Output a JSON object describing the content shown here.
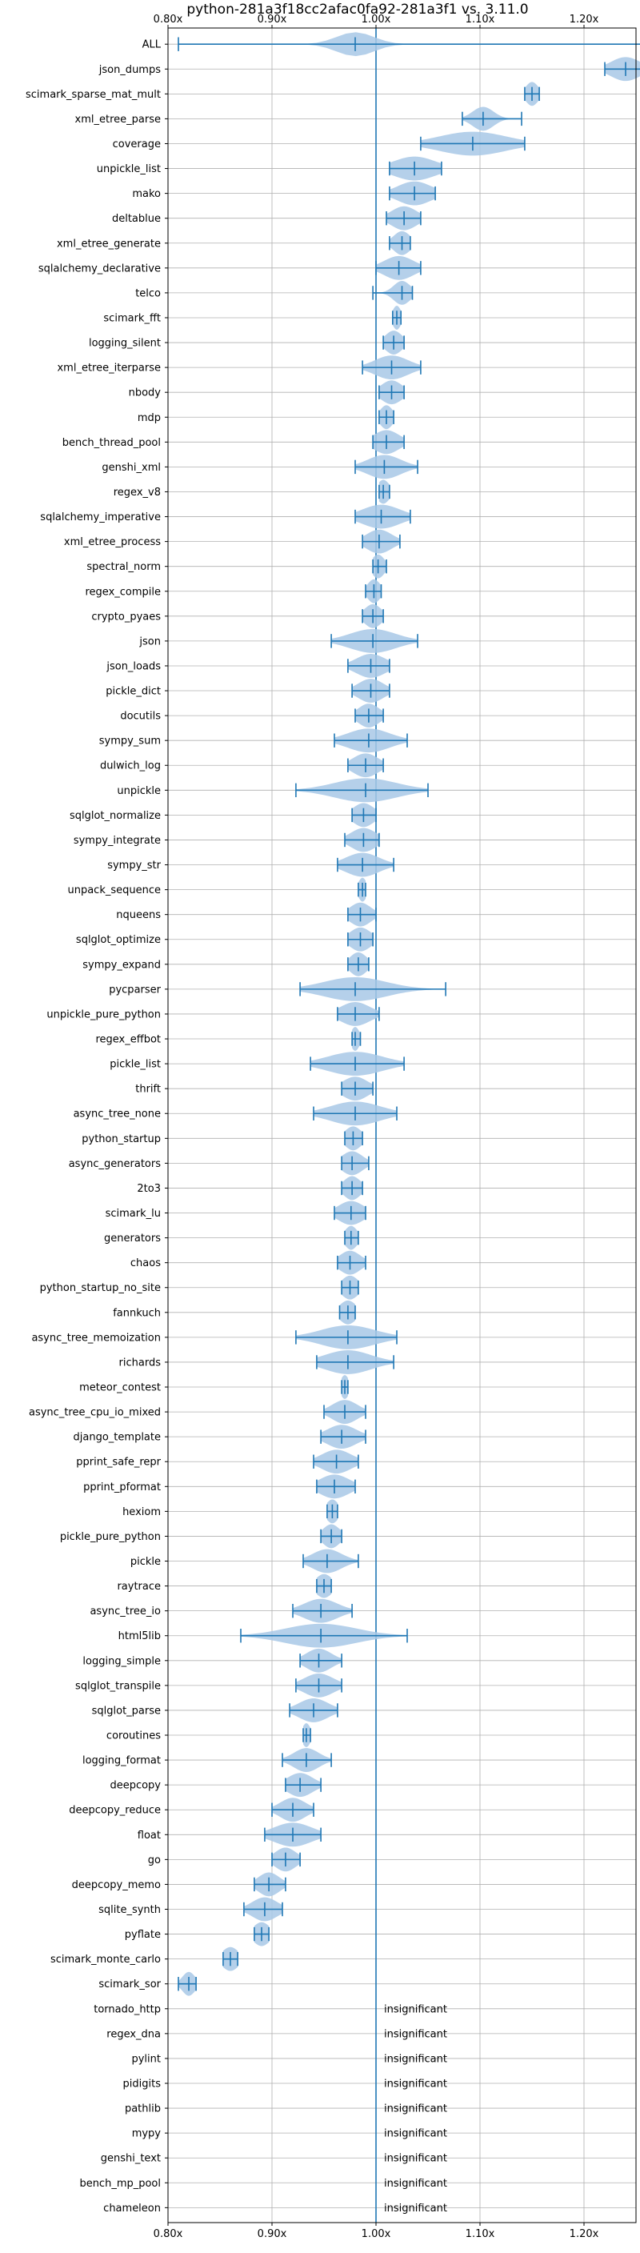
{
  "chart_data": {
    "type": "violin",
    "title": "python-281a3f18cc2afac0fa92-281a3f1 vs. 3.11.0",
    "xlabel": "",
    "ylabel": "",
    "xlim": [
      0.8,
      1.25
    ],
    "x_ticks": [
      0.8,
      0.9,
      1.0,
      1.1,
      1.2
    ],
    "x_tick_labels": [
      "0.80x",
      "0.90x",
      "1.00x",
      "1.10x",
      "1.20x"
    ],
    "reference_line": 1.0,
    "grid": true,
    "colors": {
      "violin": "#a8c8e6",
      "marker": "#1f77b4",
      "grid": "#b0b0b0",
      "reference": "#1f77b4"
    },
    "insignificant_label": "insignificant",
    "series": [
      {
        "name": "ALL",
        "min": 0.81,
        "median": 0.98,
        "max": 1.265,
        "spread": 0.018
      },
      {
        "name": "json_dumps",
        "min": 1.22,
        "median": 1.24,
        "max": 1.262,
        "spread": 0.014
      },
      {
        "name": "scimark_sparse_mat_mult",
        "min": 1.143,
        "median": 1.15,
        "max": 1.157,
        "spread": 0.006
      },
      {
        "name": "xml_etree_parse",
        "min": 1.083,
        "median": 1.103,
        "max": 1.14,
        "spread": 0.01
      },
      {
        "name": "coverage",
        "min": 1.043,
        "median": 1.093,
        "max": 1.143,
        "spread": 0.032
      },
      {
        "name": "unpickle_list",
        "min": 1.013,
        "median": 1.037,
        "max": 1.063,
        "spread": 0.02
      },
      {
        "name": "mako",
        "min": 1.013,
        "median": 1.037,
        "max": 1.057,
        "spread": 0.016
      },
      {
        "name": "deltablue",
        "min": 1.01,
        "median": 1.027,
        "max": 1.043,
        "spread": 0.012
      },
      {
        "name": "xml_etree_generate",
        "min": 1.013,
        "median": 1.025,
        "max": 1.033,
        "spread": 0.008
      },
      {
        "name": "sqlalchemy_declarative",
        "min": 1.0,
        "median": 1.022,
        "max": 1.043,
        "spread": 0.014
      },
      {
        "name": "telco",
        "min": 0.997,
        "median": 1.025,
        "max": 1.035,
        "spread": 0.008
      },
      {
        "name": "scimark_fft",
        "min": 1.016,
        "median": 1.02,
        "max": 1.024,
        "spread": 0.004
      },
      {
        "name": "logging_silent",
        "min": 1.007,
        "median": 1.017,
        "max": 1.027,
        "spread": 0.008
      },
      {
        "name": "xml_etree_iterparse",
        "min": 0.987,
        "median": 1.015,
        "max": 1.043,
        "spread": 0.016
      },
      {
        "name": "nbody",
        "min": 1.003,
        "median": 1.015,
        "max": 1.027,
        "spread": 0.01
      },
      {
        "name": "mdp",
        "min": 1.003,
        "median": 1.01,
        "max": 1.017,
        "spread": 0.006
      },
      {
        "name": "bench_thread_pool",
        "min": 0.997,
        "median": 1.01,
        "max": 1.027,
        "spread": 0.012
      },
      {
        "name": "genshi_xml",
        "min": 0.98,
        "median": 1.008,
        "max": 1.04,
        "spread": 0.016
      },
      {
        "name": "regex_v8",
        "min": 1.003,
        "median": 1.007,
        "max": 1.013,
        "spread": 0.006
      },
      {
        "name": "sqlalchemy_imperative",
        "min": 0.98,
        "median": 1.005,
        "max": 1.033,
        "spread": 0.018
      },
      {
        "name": "xml_etree_process",
        "min": 0.987,
        "median": 1.003,
        "max": 1.023,
        "spread": 0.012
      },
      {
        "name": "spectral_norm",
        "min": 0.997,
        "median": 1.002,
        "max": 1.01,
        "spread": 0.006
      },
      {
        "name": "regex_compile",
        "min": 0.99,
        "median": 0.998,
        "max": 1.005,
        "spread": 0.006
      },
      {
        "name": "crypto_pyaes",
        "min": 0.987,
        "median": 0.997,
        "max": 1.007,
        "spread": 0.008
      },
      {
        "name": "json",
        "min": 0.957,
        "median": 0.997,
        "max": 1.04,
        "spread": 0.022
      },
      {
        "name": "json_loads",
        "min": 0.973,
        "median": 0.995,
        "max": 1.013,
        "spread": 0.014
      },
      {
        "name": "pickle_dict",
        "min": 0.977,
        "median": 0.995,
        "max": 1.013,
        "spread": 0.012
      },
      {
        "name": "docutils",
        "min": 0.98,
        "median": 0.993,
        "max": 1.007,
        "spread": 0.01
      },
      {
        "name": "sympy_sum",
        "min": 0.96,
        "median": 0.993,
        "max": 1.03,
        "spread": 0.02
      },
      {
        "name": "dulwich_log",
        "min": 0.973,
        "median": 0.99,
        "max": 1.007,
        "spread": 0.012
      },
      {
        "name": "unpickle",
        "min": 0.923,
        "median": 0.99,
        "max": 1.05,
        "spread": 0.03
      },
      {
        "name": "sqlglot_normalize",
        "min": 0.977,
        "median": 0.988,
        "max": 1.0,
        "spread": 0.01
      },
      {
        "name": "sympy_integrate",
        "min": 0.97,
        "median": 0.988,
        "max": 1.003,
        "spread": 0.012
      },
      {
        "name": "sympy_str",
        "min": 0.963,
        "median": 0.987,
        "max": 1.017,
        "spread": 0.016
      },
      {
        "name": "unpack_sequence",
        "min": 0.983,
        "median": 0.987,
        "max": 0.99,
        "spread": 0.004
      },
      {
        "name": "nqueens",
        "min": 0.973,
        "median": 0.985,
        "max": 1.0,
        "spread": 0.01
      },
      {
        "name": "sqlglot_optimize",
        "min": 0.973,
        "median": 0.985,
        "max": 0.997,
        "spread": 0.01
      },
      {
        "name": "sympy_expand",
        "min": 0.973,
        "median": 0.983,
        "max": 0.993,
        "spread": 0.008
      },
      {
        "name": "pycparser",
        "min": 0.927,
        "median": 0.98,
        "max": 1.067,
        "spread": 0.03
      },
      {
        "name": "unpickle_pure_python",
        "min": 0.963,
        "median": 0.98,
        "max": 1.003,
        "spread": 0.014
      },
      {
        "name": "regex_effbot",
        "min": 0.977,
        "median": 0.98,
        "max": 0.985,
        "spread": 0.004
      },
      {
        "name": "pickle_list",
        "min": 0.937,
        "median": 0.98,
        "max": 1.027,
        "spread": 0.026
      },
      {
        "name": "thrift",
        "min": 0.967,
        "median": 0.98,
        "max": 0.997,
        "spread": 0.012
      },
      {
        "name": "async_tree_none",
        "min": 0.94,
        "median": 0.98,
        "max": 1.02,
        "spread": 0.024
      },
      {
        "name": "python_startup",
        "min": 0.97,
        "median": 0.978,
        "max": 0.987,
        "spread": 0.008
      },
      {
        "name": "async_generators",
        "min": 0.967,
        "median": 0.977,
        "max": 0.993,
        "spread": 0.01
      },
      {
        "name": "2to3",
        "min": 0.967,
        "median": 0.977,
        "max": 0.987,
        "spread": 0.008
      },
      {
        "name": "scimark_lu",
        "min": 0.96,
        "median": 0.976,
        "max": 0.99,
        "spread": 0.012
      },
      {
        "name": "generators",
        "min": 0.97,
        "median": 0.976,
        "max": 0.983,
        "spread": 0.006
      },
      {
        "name": "chaos",
        "min": 0.963,
        "median": 0.975,
        "max": 0.99,
        "spread": 0.01
      },
      {
        "name": "python_startup_no_site",
        "min": 0.967,
        "median": 0.975,
        "max": 0.983,
        "spread": 0.008
      },
      {
        "name": "fannkuch",
        "min": 0.965,
        "median": 0.973,
        "max": 0.98,
        "spread": 0.008
      },
      {
        "name": "async_tree_memoization",
        "min": 0.923,
        "median": 0.973,
        "max": 1.02,
        "spread": 0.026
      },
      {
        "name": "richards",
        "min": 0.943,
        "median": 0.973,
        "max": 1.017,
        "spread": 0.022
      },
      {
        "name": "meteor_contest",
        "min": 0.967,
        "median": 0.97,
        "max": 0.973,
        "spread": 0.004
      },
      {
        "name": "async_tree_cpu_io_mixed",
        "min": 0.95,
        "median": 0.97,
        "max": 0.99,
        "spread": 0.012
      },
      {
        "name": "django_template",
        "min": 0.947,
        "median": 0.967,
        "max": 0.99,
        "spread": 0.014
      },
      {
        "name": "pprint_safe_repr",
        "min": 0.94,
        "median": 0.962,
        "max": 0.983,
        "spread": 0.014
      },
      {
        "name": "pprint_pformat",
        "min": 0.943,
        "median": 0.96,
        "max": 0.98,
        "spread": 0.014
      },
      {
        "name": "hexiom",
        "min": 0.953,
        "median": 0.958,
        "max": 0.963,
        "spread": 0.006
      },
      {
        "name": "pickle_pure_python",
        "min": 0.947,
        "median": 0.957,
        "max": 0.967,
        "spread": 0.008
      },
      {
        "name": "pickle",
        "min": 0.93,
        "median": 0.953,
        "max": 0.983,
        "spread": 0.014
      },
      {
        "name": "raytrace",
        "min": 0.943,
        "median": 0.95,
        "max": 0.957,
        "spread": 0.008
      },
      {
        "name": "async_tree_io",
        "min": 0.92,
        "median": 0.947,
        "max": 0.977,
        "spread": 0.016
      },
      {
        "name": "html5lib",
        "min": 0.87,
        "median": 0.947,
        "max": 1.03,
        "spread": 0.034
      },
      {
        "name": "logging_simple",
        "min": 0.927,
        "median": 0.945,
        "max": 0.967,
        "spread": 0.012
      },
      {
        "name": "sqlglot_transpile",
        "min": 0.923,
        "median": 0.945,
        "max": 0.967,
        "spread": 0.014
      },
      {
        "name": "sqlglot_parse",
        "min": 0.917,
        "median": 0.94,
        "max": 0.963,
        "spread": 0.014
      },
      {
        "name": "coroutines",
        "min": 0.93,
        "median": 0.933,
        "max": 0.937,
        "spread": 0.004
      },
      {
        "name": "logging_format",
        "min": 0.91,
        "median": 0.933,
        "max": 0.957,
        "spread": 0.012
      },
      {
        "name": "deepcopy",
        "min": 0.913,
        "median": 0.927,
        "max": 0.947,
        "spread": 0.012
      },
      {
        "name": "deepcopy_reduce",
        "min": 0.9,
        "median": 0.92,
        "max": 0.94,
        "spread": 0.012
      },
      {
        "name": "float",
        "min": 0.893,
        "median": 0.92,
        "max": 0.947,
        "spread": 0.018
      },
      {
        "name": "go",
        "min": 0.9,
        "median": 0.913,
        "max": 0.927,
        "spread": 0.01
      },
      {
        "name": "deepcopy_memo",
        "min": 0.883,
        "median": 0.897,
        "max": 0.913,
        "spread": 0.01
      },
      {
        "name": "sqlite_synth",
        "min": 0.873,
        "median": 0.893,
        "max": 0.91,
        "spread": 0.012
      },
      {
        "name": "pyflate",
        "min": 0.883,
        "median": 0.89,
        "max": 0.897,
        "spread": 0.008
      },
      {
        "name": "scimark_monte_carlo",
        "min": 0.853,
        "median": 0.86,
        "max": 0.867,
        "spread": 0.008
      },
      {
        "name": "scimark_sor",
        "min": 0.81,
        "median": 0.82,
        "max": 0.827,
        "spread": 0.006
      },
      {
        "name": "tornado_http",
        "insignificant": true
      },
      {
        "name": "regex_dna",
        "insignificant": true
      },
      {
        "name": "pylint",
        "insignificant": true
      },
      {
        "name": "pidigits",
        "insignificant": true
      },
      {
        "name": "pathlib",
        "insignificant": true
      },
      {
        "name": "mypy",
        "insignificant": true
      },
      {
        "name": "genshi_text",
        "insignificant": true
      },
      {
        "name": "bench_mp_pool",
        "insignificant": true
      },
      {
        "name": "chameleon",
        "insignificant": true
      }
    ]
  }
}
